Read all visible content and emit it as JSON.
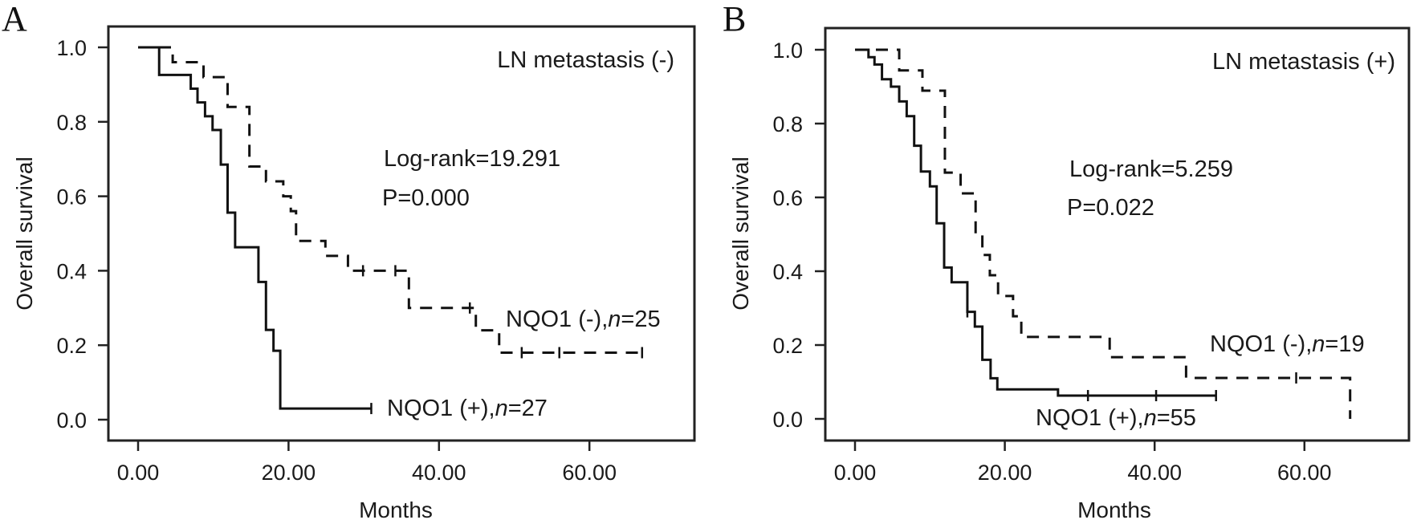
{
  "chart_data": [
    {
      "type": "line",
      "subtype": "kaplan-meier",
      "panel_label": "A",
      "title": "LN metastasis (-)",
      "xlabel": "Months",
      "ylabel": "Overall survival",
      "xlim": [
        0,
        72
      ],
      "ylim": [
        0,
        1
      ],
      "x_ticks": [
        "0.00",
        "20.00",
        "40.00",
        "60.00"
      ],
      "x_tick_values": [
        0,
        20,
        40,
        60
      ],
      "y_ticks": [
        "0.0",
        "0.2",
        "0.4",
        "0.6",
        "0.8",
        "1.0"
      ],
      "y_tick_values": [
        0,
        0.2,
        0.4,
        0.6,
        0.8,
        1.0
      ],
      "stats": {
        "log_rank": "Log-rank=19.291",
        "p_value": "P=0.000"
      },
      "series": [
        {
          "name": "NQO1 (+)",
          "label": {
            "prefix": "NQO1 (+),",
            "n_symbol": "n",
            "n_value": "=27"
          },
          "style": "solid",
          "steps": [
            [
              2.8,
              0.926
            ],
            [
              7.0,
              0.889
            ],
            [
              7.9,
              0.852
            ],
            [
              8.9,
              0.815
            ],
            [
              9.9,
              0.778
            ],
            [
              11.0,
              0.685
            ],
            [
              11.9,
              0.556
            ],
            [
              12.9,
              0.463
            ],
            [
              16.0,
              0.37
            ],
            [
              17.0,
              0.241
            ],
            [
              18.0,
              0.185
            ],
            [
              18.9,
              0.03
            ]
          ],
          "end_time": 31.0,
          "censored": [
            31.0
          ]
        },
        {
          "name": "NQO1 (-)",
          "label": {
            "prefix": "NQO1 (-),",
            "n_symbol": "n",
            "n_value": "=25"
          },
          "style": "dashed",
          "steps": [
            [
              4.6,
              0.96
            ],
            [
              8.7,
              0.92
            ],
            [
              11.9,
              0.84
            ],
            [
              14.8,
              0.68
            ],
            [
              17.0,
              0.64
            ],
            [
              19.3,
              0.6
            ],
            [
              20.3,
              0.56
            ],
            [
              21.0,
              0.48
            ],
            [
              24.9,
              0.44
            ],
            [
              27.9,
              0.4
            ],
            [
              36.0,
              0.3
            ],
            [
              44.9,
              0.24
            ],
            [
              48.0,
              0.18
            ]
          ],
          "end_time": 67.0,
          "censored": [
            29.9,
            34.2,
            44.1,
            51.0,
            56.0,
            67.0
          ]
        }
      ]
    },
    {
      "type": "line",
      "subtype": "kaplan-meier",
      "panel_label": "B",
      "title": "LN metastasis (+)",
      "xlabel": "Months",
      "ylabel": "Overall survival",
      "xlim": [
        0,
        74
      ],
      "ylim": [
        0,
        1
      ],
      "x_ticks": [
        "0.00",
        "20.00",
        "40.00",
        "60.00"
      ],
      "x_tick_values": [
        0,
        20,
        40,
        60
      ],
      "y_ticks": [
        "0.0",
        "0.2",
        "0.4",
        "0.6",
        "0.8",
        "1.0"
      ],
      "y_tick_values": [
        0,
        0.2,
        0.4,
        0.6,
        0.8,
        1.0
      ],
      "stats": {
        "log_rank": "Log-rank=5.259",
        "p_value": "P=0.022"
      },
      "series": [
        {
          "name": "NQO1 (+)",
          "label": {
            "prefix": "NQO1 (+),",
            "n_symbol": "n",
            "n_value": "=55"
          },
          "style": "solid",
          "steps": [
            [
              1.8,
              0.98
            ],
            [
              2.6,
              0.96
            ],
            [
              3.6,
              0.92
            ],
            [
              4.8,
              0.9
            ],
            [
              5.9,
              0.86
            ],
            [
              6.9,
              0.82
            ],
            [
              7.9,
              0.74
            ],
            [
              8.8,
              0.67
            ],
            [
              10.0,
              0.63
            ],
            [
              10.9,
              0.53
            ],
            [
              11.9,
              0.41
            ],
            [
              12.9,
              0.37
            ],
            [
              15.0,
              0.29
            ],
            [
              16.0,
              0.25
            ],
            [
              17.0,
              0.16
            ],
            [
              18.1,
              0.11
            ],
            [
              19.0,
              0.08
            ],
            [
              27.1,
              0.063
            ]
          ],
          "end_time": 48.2,
          "censored": [
            15.0,
            31.1,
            40.2,
            48.2
          ]
        },
        {
          "name": "NQO1 (-)",
          "label": {
            "prefix": "NQO1 (-),",
            "n_symbol": "n",
            "n_value": "=19"
          },
          "style": "dashed",
          "steps": [
            [
              5.9,
              0.944
            ],
            [
              9.0,
              0.889
            ],
            [
              12.0,
              0.667
            ],
            [
              14.1,
              0.611
            ],
            [
              16.1,
              0.5
            ],
            [
              17.0,
              0.444
            ],
            [
              18.0,
              0.389
            ],
            [
              19.1,
              0.333
            ],
            [
              21.1,
              0.278
            ],
            [
              22.2,
              0.222
            ],
            [
              34.0,
              0.167
            ],
            [
              44.2,
              0.111
            ],
            [
              66.1,
              0.0
            ]
          ],
          "end_time": 66.1,
          "censored": [
            58.9
          ]
        }
      ]
    }
  ]
}
